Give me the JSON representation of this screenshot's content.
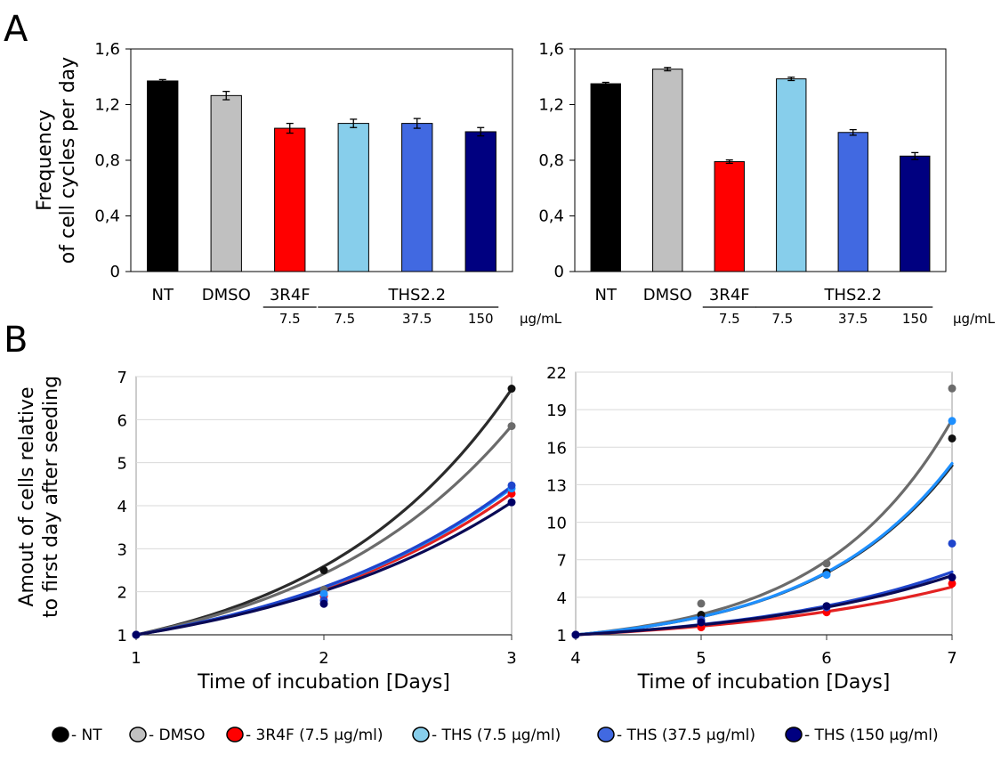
{
  "panel_labels": {
    "a": "A",
    "b": "B"
  },
  "chart_data": [
    {
      "id": "A1",
      "type": "bar",
      "categories": [
        "NT",
        "DMSO",
        "3R4F",
        "THS2.2 7.5",
        "THS2.2 37.5",
        "THS2.2 150"
      ],
      "values": [
        1.37,
        1.265,
        1.03,
        1.065,
        1.065,
        1.005
      ],
      "errors": [
        0.01,
        0.03,
        0.035,
        0.03,
        0.035,
        0.03
      ],
      "colors": [
        "#000000",
        "#c0c0c0",
        "#ff0000",
        "#87ceeb",
        "#4169e1",
        "#000080"
      ],
      "ylabel_lines": [
        "Frequency",
        "of cell cycles per day"
      ],
      "yticks": [
        "0",
        "0,4",
        "0,8",
        "1,2",
        "1,6"
      ],
      "ylim": [
        0,
        1.6
      ],
      "xlabels": {
        "nt": "NT",
        "dmso": "DMSO",
        "r4f": "3R4F",
        "ths": "THS2.2",
        "d1": "7.5",
        "d2": "7.5",
        "d3": "37.5",
        "d4": "150",
        "unit": "μg/mL"
      }
    },
    {
      "id": "A2",
      "type": "bar",
      "categories": [
        "NT",
        "DMSO",
        "3R4F",
        "THS2.2 7.5",
        "THS2.2 37.5",
        "THS2.2 150"
      ],
      "values": [
        1.35,
        1.455,
        0.79,
        1.385,
        1.0,
        0.83
      ],
      "errors": [
        0.01,
        0.012,
        0.012,
        0.012,
        0.02,
        0.025
      ],
      "colors": [
        "#000000",
        "#c0c0c0",
        "#ff0000",
        "#87ceeb",
        "#4169e1",
        "#000080"
      ],
      "yticks": [
        "0",
        "0,4",
        "0,8",
        "1,2",
        "1,6"
      ],
      "ylim": [
        0,
        1.6
      ],
      "xlabels": {
        "nt": "NT",
        "dmso": "DMSO",
        "r4f": "3R4F",
        "ths": "THS2.2",
        "d1": "7.5",
        "d2": "7.5",
        "d3": "37.5",
        "d4": "150",
        "unit": "μg/mL"
      }
    },
    {
      "id": "B1",
      "type": "scatter",
      "xlabel": "Time of incubation [Days]",
      "ylabel_lines": [
        "Amout of cells relative",
        "to first day after seeding"
      ],
      "xlim": [
        1,
        3
      ],
      "ylim": [
        1,
        7
      ],
      "xticks": [
        "1",
        "2",
        "3"
      ],
      "yticks": [
        "1",
        "2",
        "3",
        "4",
        "5",
        "6",
        "7"
      ],
      "grid": true,
      "series": [
        {
          "key": "NT",
          "color": "#111111",
          "line": "#2b2b2b",
          "x": [
            1,
            2,
            3
          ],
          "y": [
            1,
            2.5,
            6.72
          ],
          "a": 2.59
        },
        {
          "key": "DMSO",
          "color": "#6b6b6b",
          "line": "#6b6b6b",
          "x": [
            1,
            2,
            3
          ],
          "y": [
            1,
            2.05,
            5.85
          ],
          "a": 2.42
        },
        {
          "key": "3R4F",
          "color": "#ff0000",
          "line": "#e32222",
          "x": [
            1,
            2,
            3
          ],
          "y": [
            1,
            1.9,
            4.28
          ],
          "a": 2.07
        },
        {
          "key": "THS7.5",
          "color": "#1e90ff",
          "line": "#1e90ff",
          "x": [
            1,
            2,
            3
          ],
          "y": [
            1,
            1.95,
            4.4
          ],
          "a": 2.1
        },
        {
          "key": "THS37.5",
          "color": "#1f45cc",
          "line": "#1f45cc",
          "x": [
            1,
            2,
            3
          ],
          "y": [
            1,
            1.8,
            4.47
          ],
          "a": 2.11
        },
        {
          "key": "THS150",
          "color": "#000066",
          "line": "#0a0a55",
          "x": [
            1,
            2,
            3
          ],
          "y": [
            1,
            1.72,
            4.08
          ],
          "a": 2.02
        }
      ]
    },
    {
      "id": "B2",
      "type": "scatter",
      "xlabel": "Time of incubation [Days]",
      "xlim": [
        4,
        7
      ],
      "ylim": [
        1,
        22
      ],
      "xticks": [
        "4",
        "5",
        "6",
        "7"
      ],
      "yticks": [
        "1",
        "4",
        "7",
        "10",
        "13",
        "16",
        "19",
        "22"
      ],
      "grid": true,
      "series": [
        {
          "key": "NT",
          "color": "#111111",
          "line": "#2b2b2b",
          "x": [
            4,
            5,
            6,
            7
          ],
          "y": [
            1,
            2.6,
            6.0,
            16.7
          ],
          "a": 2.44
        },
        {
          "key": "DMSO",
          "color": "#6b6b6b",
          "line": "#6b6b6b",
          "x": [
            4,
            5,
            6,
            7
          ],
          "y": [
            1,
            3.5,
            6.7,
            20.7
          ],
          "a": 2.63
        },
        {
          "key": "3R4F",
          "color": "#ff0000",
          "line": "#e32222",
          "x": [
            4,
            5,
            6,
            7
          ],
          "y": [
            1,
            1.6,
            2.8,
            5.1
          ],
          "a": 1.69
        },
        {
          "key": "THS7.5",
          "color": "#1e90ff",
          "line": "#1e90ff",
          "x": [
            4,
            5,
            6,
            7
          ],
          "y": [
            1,
            2.1,
            5.8,
            18.1
          ],
          "a": 2.45
        },
        {
          "key": "THS37.5",
          "color": "#1f45cc",
          "line": "#1f45cc",
          "x": [
            4,
            5,
            6,
            7
          ],
          "y": [
            1,
            2.2,
            3.2,
            8.3
          ],
          "a": 1.82
        },
        {
          "key": "THS150",
          "color": "#000066",
          "line": "#0a0a55",
          "x": [
            4,
            5,
            6,
            7
          ],
          "y": [
            1,
            2.0,
            3.3,
            5.6
          ],
          "a": 1.79
        }
      ]
    }
  ],
  "legend": [
    {
      "label": "- NT",
      "color": "#000000"
    },
    {
      "label": "- DMSO",
      "color": "#c0c0c0"
    },
    {
      "label": "- 3R4F (7.5 μg/ml)",
      "color": "#ff0000"
    },
    {
      "label": "- THS (7.5 μg/ml)",
      "color": "#87ceeb"
    },
    {
      "label": "- THS (37.5 μg/ml)",
      "color": "#4169e1"
    },
    {
      "label": "- THS (150 μg/ml)",
      "color": "#000080"
    }
  ]
}
